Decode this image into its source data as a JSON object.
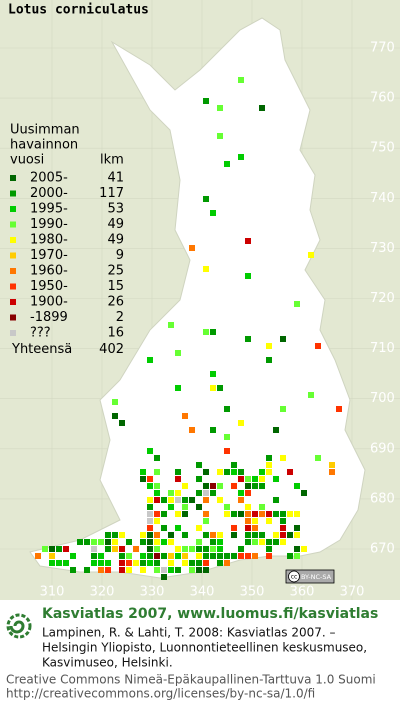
{
  "title": "Lotus corniculatus",
  "legend": {
    "heading": [
      "Uusimman",
      "havainnon",
      "vuosi"
    ],
    "count_heading": "lkm",
    "entries": [
      {
        "label": "2005-",
        "count": 41,
        "color": "#006600"
      },
      {
        "label": "2000-",
        "count": 117,
        "color": "#009900"
      },
      {
        "label": "1995-",
        "count": 53,
        "color": "#00cc00"
      },
      {
        "label": "1990-",
        "count": 49,
        "color": "#66ff33"
      },
      {
        "label": "1980-",
        "count": 49,
        "color": "#ffff00"
      },
      {
        "label": "1970-",
        "count": 9,
        "color": "#ffcc00"
      },
      {
        "label": "1960-",
        "count": 25,
        "color": "#ff7700"
      },
      {
        "label": "1950-",
        "count": 15,
        "color": "#ff3300"
      },
      {
        "label": "1900-",
        "count": 26,
        "color": "#cc0000"
      },
      {
        "label": "-1899",
        "count": 2,
        "color": "#880000"
      },
      {
        "label": "???",
        "count": 16,
        "color": "#c8c8c8"
      }
    ],
    "total_label": "Yhteensä",
    "total": 402
  },
  "map": {
    "y_labels": [
      770,
      760,
      750,
      740,
      730,
      720,
      710,
      700,
      690,
      680,
      670
    ],
    "x_labels": [
      310,
      320,
      330,
      340,
      350,
      360,
      370
    ],
    "badge": [
      "cc",
      "BY-NC-SA"
    ]
  },
  "footer": {
    "title": "Kasviatlas 2007, www.luomus.fi/kasviatlas",
    "citation": [
      "Lampinen, R. & Lahti, T. 2008: Kasviatlas 2007. –",
      "Helsingin Yliopisto, Luonnontieteellinen keskusmuseo,",
      "Kasvimuseo, Helsinki."
    ],
    "license": [
      "Creative Commons Nimeä-Epäkaupallinen-Tarttuva 1.0 Suomi",
      "http://creativecommons.org/licenses/by-nc-sa/1.0/fi"
    ]
  }
}
